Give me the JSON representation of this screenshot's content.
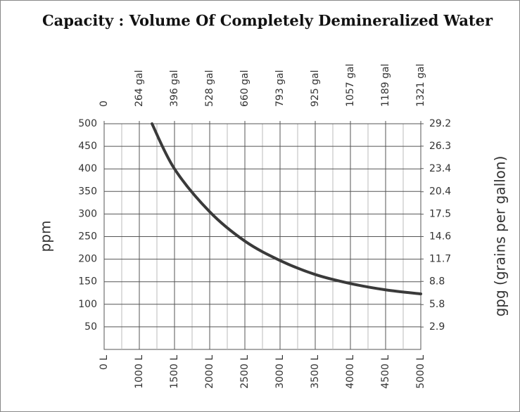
{
  "chart_data": {
    "type": "line",
    "title": "Capacity : Volume Of Completely Demineralized Water",
    "ylabel": "ppm",
    "y2label": "gpg (grains per gallon)",
    "xticks": [
      {
        "value": 0,
        "label": "0 L"
      },
      {
        "value": 1000,
        "label": "1000 L"
      },
      {
        "value": 1500,
        "label": "1500 L"
      },
      {
        "value": 2000,
        "label": "2000 L"
      },
      {
        "value": 2500,
        "label": "2500 L"
      },
      {
        "value": 3000,
        "label": "3000 L"
      },
      {
        "value": 3500,
        "label": "3500 L"
      },
      {
        "value": 4000,
        "label": "4000 L"
      },
      {
        "value": 4500,
        "label": "4500 L"
      },
      {
        "value": 5000,
        "label": "5000 L"
      }
    ],
    "x2ticks": [
      0,
      {
        "value": 264,
        "label": "264 gal"
      },
      {
        "value": 396,
        "label": "396 gal"
      },
      {
        "value": 528,
        "label": "528 gal"
      },
      {
        "value": 660,
        "label": "660 gal"
      },
      {
        "value": 793,
        "label": "793 gal"
      },
      {
        "value": 925,
        "label": "925 gal"
      },
      {
        "value": 1057,
        "label": "1057 gal"
      },
      {
        "value": 1189,
        "label": "1189 gal"
      },
      {
        "value": 1321,
        "label": "1321 gal"
      }
    ],
    "ylim": [
      0,
      500
    ],
    "yticks": [
      50,
      100,
      150,
      200,
      250,
      300,
      350,
      400,
      450,
      500
    ],
    "y2lim": [
      0,
      29.2
    ],
    "y2ticks": [
      2.9,
      5.8,
      8.8,
      11.7,
      14.6,
      17.5,
      20.4,
      23.4,
      26.3,
      29.2
    ],
    "grid": true,
    "series": [
      {
        "color": "#3a3a3a",
        "x": [
          1180,
          1500,
          2000,
          2500,
          3000,
          3500,
          4000,
          4500,
          5000
        ],
        "values": [
          500,
          400,
          305,
          240,
          197,
          166,
          146,
          132,
          123
        ]
      }
    ]
  }
}
